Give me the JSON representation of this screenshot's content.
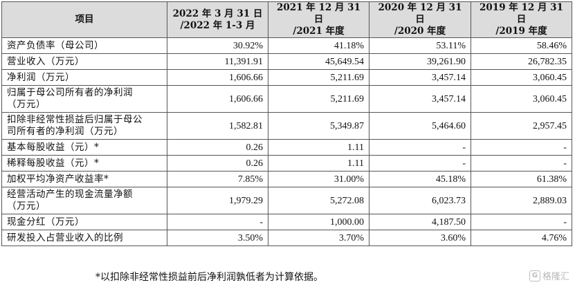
{
  "table": {
    "headers": [
      {
        "line1": "项目",
        "line2": ""
      },
      {
        "line1": "2022 年 3 月 31 日",
        "line2": "/2022 年 1-3 月"
      },
      {
        "line1": "2021 年 12 月 31 日",
        "line2": "/2021 年度"
      },
      {
        "line1": "2020 年 12 月 31 日",
        "line2": "/2020 年度"
      },
      {
        "line1": "2019 年 12 月 31 日",
        "line2": "/2019 年度"
      }
    ],
    "rows": [
      {
        "label": [
          "资产负债率（母公司）"
        ],
        "values": [
          "30.92%",
          "41.18%",
          "53.11%",
          "58.46%"
        ]
      },
      {
        "label": [
          "营业收入（万元）"
        ],
        "values": [
          "11,391.91",
          "45,649.54",
          "39,261.90",
          "26,782.35"
        ]
      },
      {
        "label": [
          "净利润（万元）"
        ],
        "values": [
          "1,606.66",
          "5,211.69",
          "3,457.14",
          "3,060.45"
        ]
      },
      {
        "label": [
          "归属于母公司所有者的净利润",
          "（万元）"
        ],
        "values": [
          "1,606.66",
          "5,211.69",
          "3,457.14",
          "3,060.45"
        ]
      },
      {
        "label": [
          "扣除非经常性损益后归属于母公",
          "司所有者的净利润（万元）"
        ],
        "values": [
          "1,582.81",
          "5,349.87",
          "5,464.60",
          "2,957.45"
        ]
      },
      {
        "label": [
          "基本每股收益（元）*"
        ],
        "values": [
          "0.26",
          "1.11",
          "-",
          "-"
        ]
      },
      {
        "label": [
          "稀释每股收益（元）*"
        ],
        "values": [
          "0.26",
          "1.11",
          "-",
          "-"
        ]
      },
      {
        "label": [
          "加权平均净资产收益率*"
        ],
        "values": [
          "7.85%",
          "31.00%",
          "45.18%",
          "61.38%"
        ]
      },
      {
        "label": [
          "经营活动产生的现金流量净额",
          "（万元）"
        ],
        "values": [
          "1,979.29",
          "5,272.08",
          "6,023.73",
          "2,889.03"
        ]
      },
      {
        "label": [
          "现金分红（万元）"
        ],
        "values": [
          "-",
          "1,000.00",
          "4,187.50",
          "-"
        ]
      },
      {
        "label": [
          "研发投入占营业收入的比例"
        ],
        "values": [
          "3.50%",
          "3.70%",
          "3.60%",
          "4.76%"
        ]
      }
    ]
  },
  "footnote": "*以扣除非经常性损益前后净利润孰低者为计算依据。",
  "watermark": {
    "icon": "gelonghui-logo-icon",
    "text": "格隆汇"
  }
}
